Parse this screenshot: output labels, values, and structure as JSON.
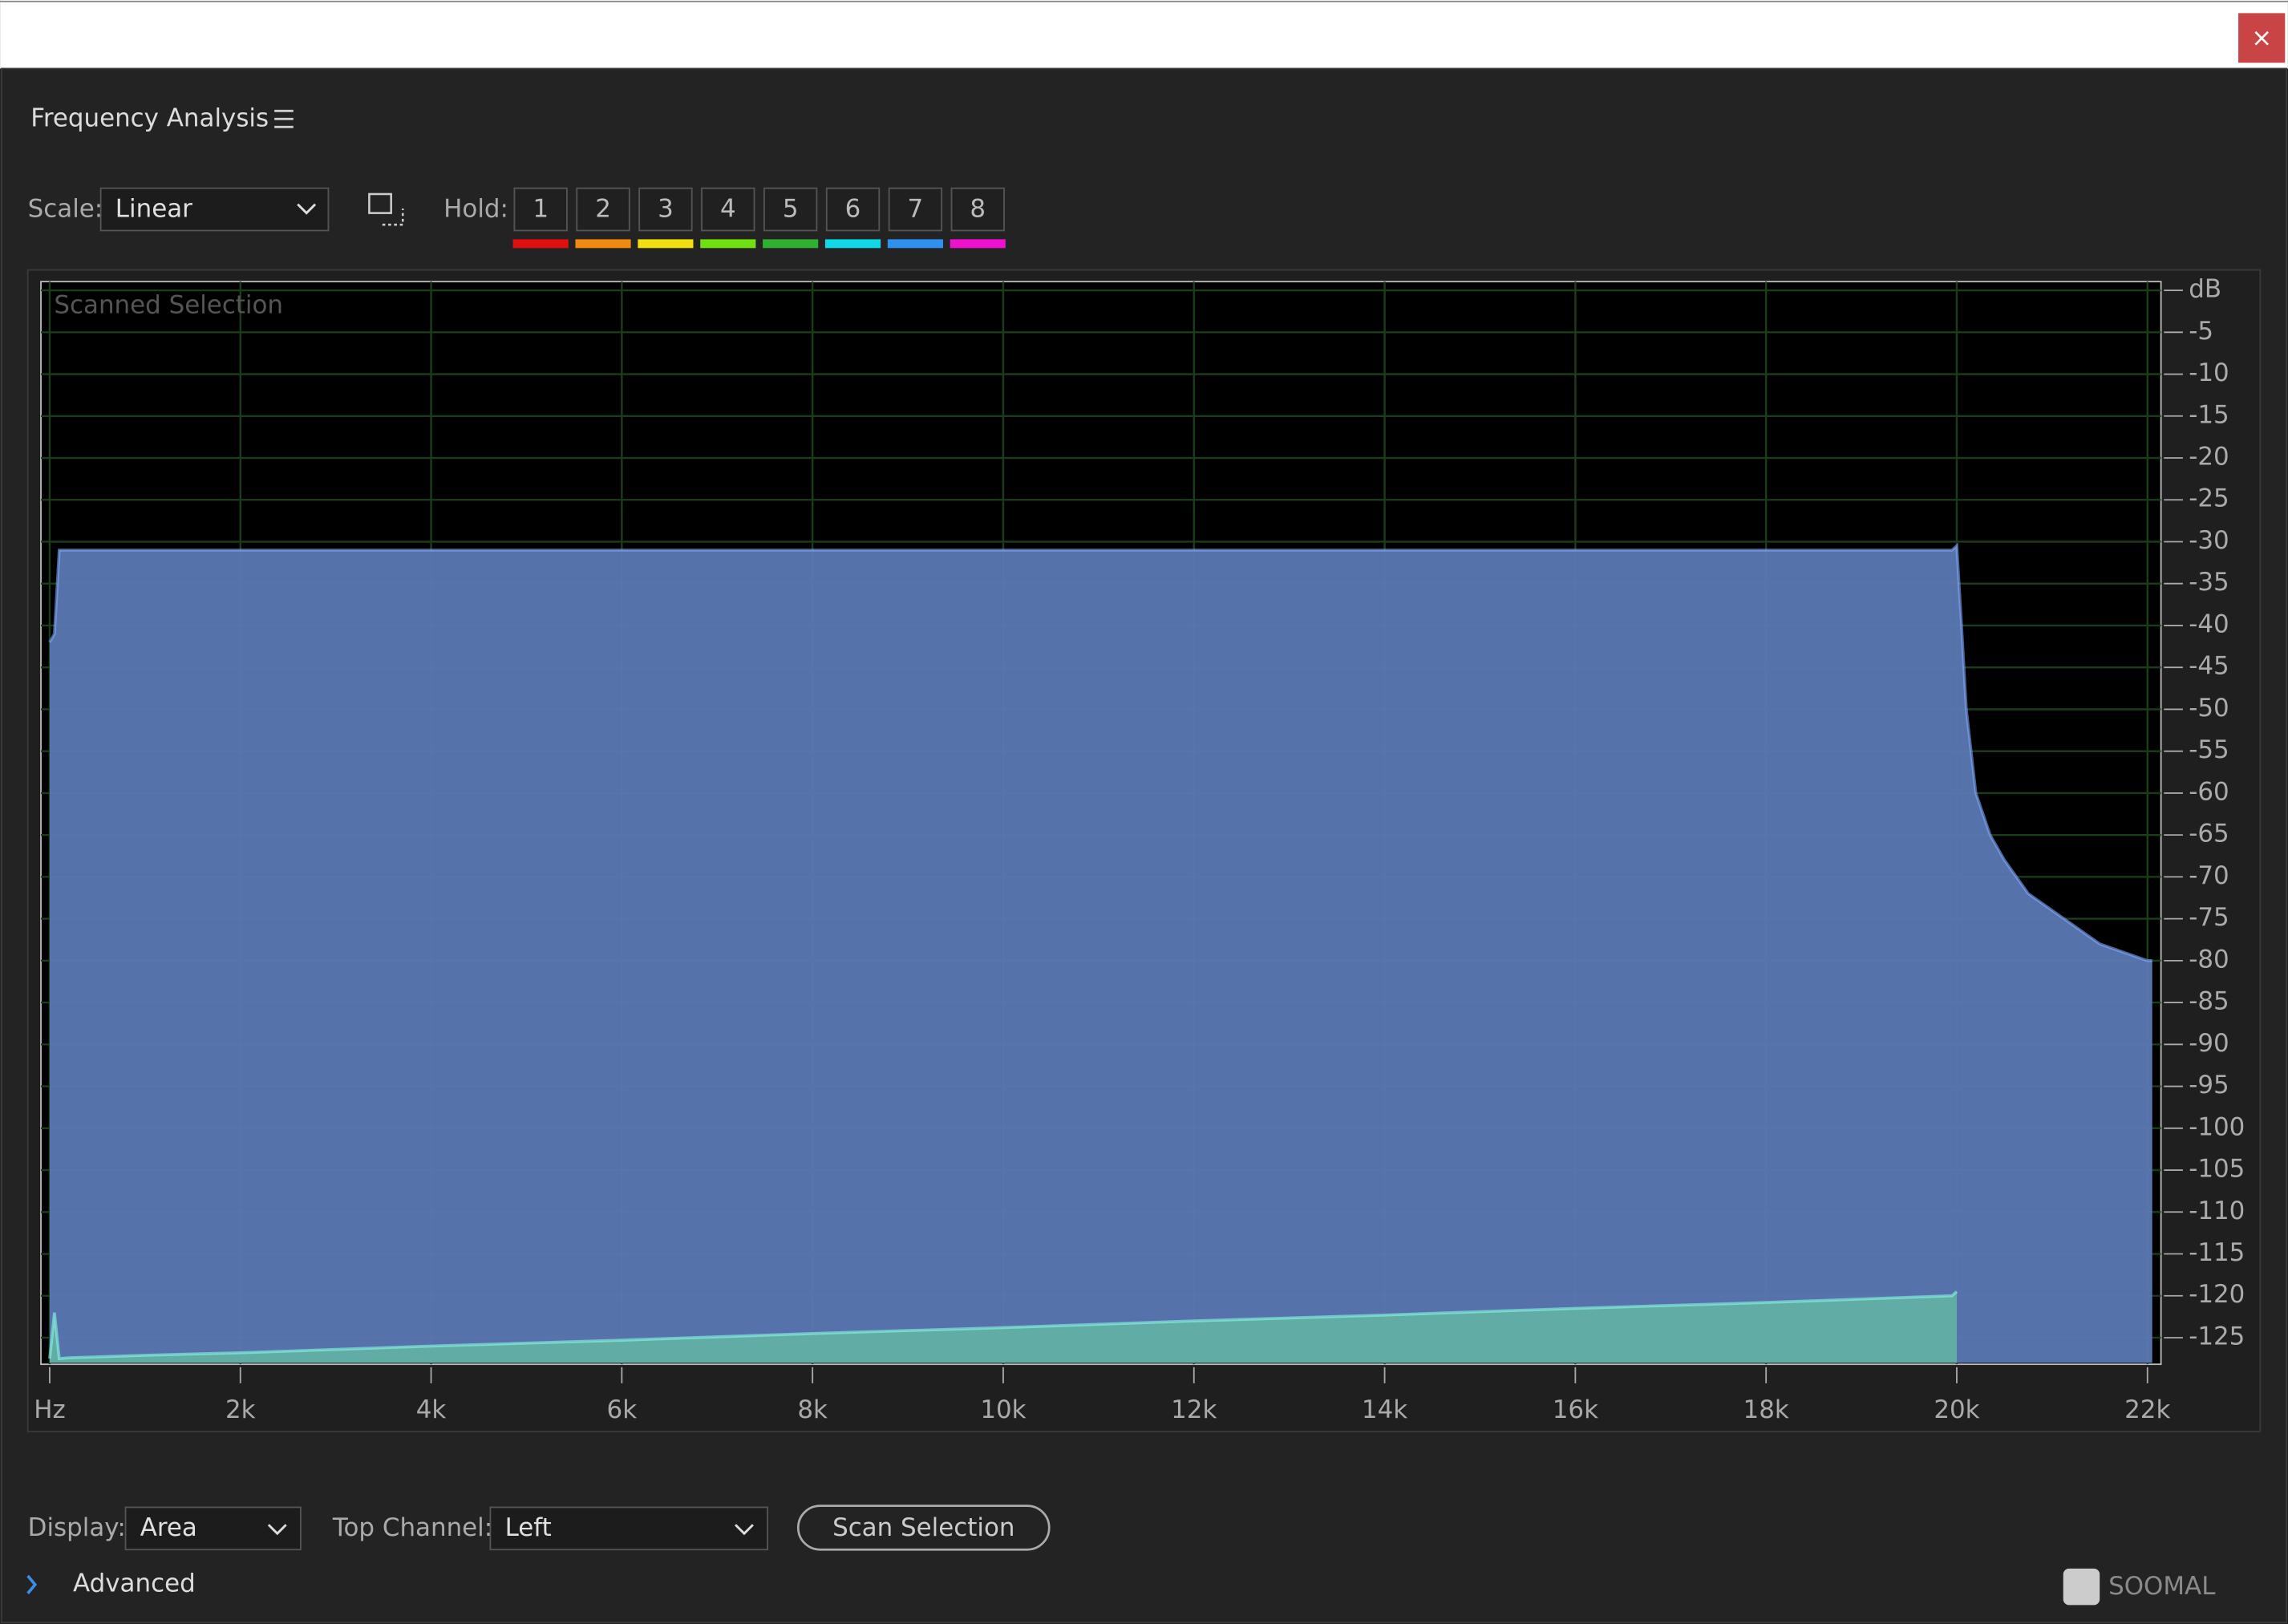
{
  "window": {
    "close": "×"
  },
  "header": {
    "title": "Frequency Analysis"
  },
  "toolbar": {
    "scale_label": "Scale:",
    "scale_value": "Linear",
    "hold_label": "Hold:",
    "hold_buttons": [
      {
        "label": "1",
        "color": "#e01010"
      },
      {
        "label": "2",
        "color": "#f08a10"
      },
      {
        "label": "3",
        "color": "#f0e010"
      },
      {
        "label": "4",
        "color": "#70e010"
      },
      {
        "label": "5",
        "color": "#30b030"
      },
      {
        "label": "6",
        "color": "#10d8e8"
      },
      {
        "label": "7",
        "color": "#3090f0"
      },
      {
        "label": "8",
        "color": "#f010d0"
      }
    ]
  },
  "chart_data": {
    "type": "area",
    "title": "Scanned Selection",
    "x": [
      0,
      50,
      100,
      200,
      1000,
      2000,
      4000,
      6000,
      8000,
      10000,
      12000,
      14000,
      16000,
      18000,
      19950,
      20000,
      20050,
      20100,
      20200,
      20350,
      20500,
      20750,
      21000,
      21500,
      22000,
      22050
    ],
    "series": [
      {
        "color": "#5b78b3",
        "values": [
          -42,
          -41,
          -31,
          -31,
          -31,
          -31,
          -31,
          -31,
          -31,
          -31,
          -31,
          -31,
          -31,
          -31,
          -31,
          -30.5,
          -40,
          -50,
          -60,
          -65,
          -68,
          -72,
          -74,
          -78,
          -80,
          -80
        ]
      },
      {
        "color": "#62b0a4",
        "values": [
          -127.5,
          -122,
          -127.5,
          -127.4,
          -127.1,
          -126.8,
          -126,
          -125.3,
          -124.5,
          -123.8,
          -123,
          -122.3,
          -121.5,
          -120.8,
          -120,
          -119.5,
          null,
          null,
          null,
          null,
          null,
          null,
          null,
          null,
          null,
          null
        ]
      }
    ],
    "xlim": [
      0,
      22050
    ],
    "xticks": [
      {
        "value": 0,
        "label": "Hz"
      },
      {
        "value": 2000,
        "label": "2k"
      },
      {
        "value": 4000,
        "label": "4k"
      },
      {
        "value": 6000,
        "label": "6k"
      },
      {
        "value": 8000,
        "label": "8k"
      },
      {
        "value": 10000,
        "label": "10k"
      },
      {
        "value": 12000,
        "label": "12k"
      },
      {
        "value": 14000,
        "label": "14k"
      },
      {
        "value": 16000,
        "label": "16k"
      },
      {
        "value": 18000,
        "label": "18k"
      },
      {
        "value": 20000,
        "label": "20k"
      },
      {
        "value": 22000,
        "label": "22k"
      }
    ],
    "ylim": [
      -128,
      0
    ],
    "yticks": [
      {
        "value": 0,
        "label": "dB"
      },
      -5,
      -10,
      -15,
      -20,
      -25,
      -30,
      -35,
      -40,
      -45,
      -50,
      -55,
      -60,
      -65,
      -70,
      -75,
      -80,
      -85,
      -90,
      -95,
      -100,
      -105,
      -110,
      -115,
      -120,
      -125
    ],
    "grid": true
  },
  "footer": {
    "display_label": "Display:",
    "display_value": "Area",
    "top_channel_label": "Top Channel:",
    "top_channel_value": "Left",
    "scan_button": "Scan Selection",
    "advanced": "Advanced",
    "watermark": "SOOMAL"
  }
}
